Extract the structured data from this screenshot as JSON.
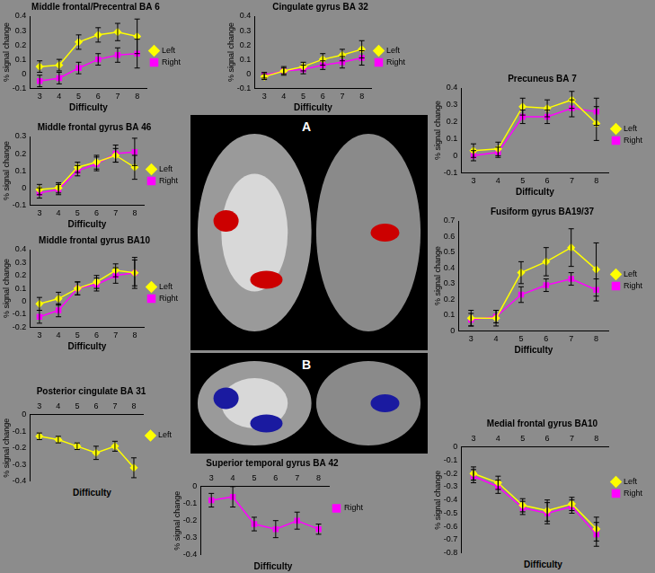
{
  "chart_data": [
    {
      "type": "line",
      "title": "Middle frontal/Precentral BA 6",
      "xlabel": "Difficulty",
      "ylabel": "% signal change",
      "categories": [
        3,
        4,
        5,
        6,
        7,
        8
      ],
      "ylim": [
        -0.1,
        0.4
      ],
      "yticks": [
        -0.1,
        0,
        0.1,
        0.2,
        0.3,
        0.4
      ],
      "grid": false,
      "legend": "right",
      "series": [
        {
          "name": "Left",
          "color": "#ffff00",
          "marker": "diamond",
          "line_style": "solid",
          "values": [
            0.05,
            0.06,
            0.22,
            0.27,
            0.29,
            0.26
          ],
          "errors": [
            0.04,
            0.04,
            0.05,
            0.05,
            0.06,
            0.12
          ]
        },
        {
          "name": "Right",
          "color": "#ff00ff",
          "marker": "square",
          "line_style": "solid",
          "values": [
            -0.05,
            -0.03,
            0.04,
            0.1,
            0.13,
            0.14
          ],
          "errors": [
            0.04,
            0.04,
            0.04,
            0.04,
            0.05,
            0.1
          ]
        }
      ]
    },
    {
      "type": "line",
      "title": "Cingulate gyrus BA 32",
      "xlabel": "Difficulty",
      "ylabel": "% signal change",
      "categories": [
        3,
        4,
        5,
        6,
        7,
        8
      ],
      "ylim": [
        -0.1,
        0.4
      ],
      "yticks": [
        -0.1,
        0,
        0.1,
        0.2,
        0.3,
        0.4
      ],
      "grid": false,
      "legend": "right",
      "series": [
        {
          "name": "Left",
          "color": "#ffff00",
          "marker": "diamond",
          "line_style": "solid",
          "values": [
            -0.02,
            0.02,
            0.05,
            0.1,
            0.13,
            0.17
          ],
          "errors": [
            0.02,
            0.03,
            0.03,
            0.04,
            0.04,
            0.06
          ]
        },
        {
          "name": "Right",
          "color": "#ff00ff",
          "marker": "square",
          "line_style": "solid",
          "values": [
            -0.01,
            0.02,
            0.03,
            0.06,
            0.08,
            0.11
          ],
          "errors": [
            0.02,
            0.02,
            0.03,
            0.03,
            0.04,
            0.05
          ]
        }
      ]
    },
    {
      "type": "line",
      "title": "Precuneus BA 7",
      "xlabel": "Difficulty",
      "ylabel": "% signal change",
      "categories": [
        3,
        4,
        5,
        6,
        7,
        8
      ],
      "ylim": [
        -0.1,
        0.4
      ],
      "yticks": [
        -0.1,
        0,
        0.1,
        0.2,
        0.3,
        0.4
      ],
      "grid": false,
      "legend": "right",
      "series": [
        {
          "name": "Left",
          "color": "#ffff00",
          "marker": "diamond",
          "line_style": "solid",
          "values": [
            0.03,
            0.04,
            0.29,
            0.28,
            0.33,
            0.19
          ],
          "errors": [
            0.04,
            0.04,
            0.05,
            0.05,
            0.05,
            0.1
          ]
        },
        {
          "name": "Right",
          "color": "#ff00ff",
          "marker": "square",
          "line_style": "solid",
          "values": [
            0.0,
            0.02,
            0.23,
            0.23,
            0.28,
            0.26
          ],
          "errors": [
            0.03,
            0.03,
            0.04,
            0.04,
            0.05,
            0.08
          ]
        }
      ]
    },
    {
      "type": "line",
      "title": "Middle frontal gyrus BA 46",
      "xlabel": "Difficulty",
      "ylabel": "% signal change",
      "categories": [
        3,
        4,
        5,
        6,
        7,
        8
      ],
      "ylim": [
        -0.1,
        0.3
      ],
      "yticks": [
        -0.1,
        0,
        0.1,
        0.2,
        0.3
      ],
      "grid": false,
      "legend": "right",
      "series": [
        {
          "name": "Left",
          "color": "#ffff00",
          "marker": "diamond",
          "line_style": "solid",
          "values": [
            -0.01,
            0.0,
            0.12,
            0.15,
            0.19,
            0.12
          ],
          "errors": [
            0.03,
            0.03,
            0.03,
            0.04,
            0.04,
            0.07
          ]
        },
        {
          "name": "Right",
          "color": "#ff00ff",
          "marker": "square",
          "line_style": "solid",
          "values": [
            -0.03,
            -0.01,
            0.1,
            0.14,
            0.2,
            0.21
          ],
          "errors": [
            0.03,
            0.03,
            0.03,
            0.04,
            0.05,
            0.08
          ]
        }
      ]
    },
    {
      "type": "line",
      "title": "Middle frontal gyrus BA10",
      "xlabel": "Difficulty",
      "ylabel": "% signal change",
      "categories": [
        3,
        4,
        5,
        6,
        7,
        8
      ],
      "ylim": [
        -0.2,
        0.4
      ],
      "yticks": [
        -0.2,
        -0.1,
        0,
        0.1,
        0.2,
        0.3,
        0.4
      ],
      "grid": false,
      "legend": "right",
      "series": [
        {
          "name": "Left",
          "color": "#ffff00",
          "marker": "diamond",
          "line_style": "solid",
          "values": [
            -0.02,
            0.02,
            0.1,
            0.15,
            0.24,
            0.22
          ],
          "errors": [
            0.05,
            0.05,
            0.05,
            0.05,
            0.05,
            0.1
          ]
        },
        {
          "name": "Right",
          "color": "#ff00ff",
          "marker": "square",
          "line_style": "solid",
          "values": [
            -0.12,
            -0.07,
            0.1,
            0.13,
            0.2,
            0.22
          ],
          "errors": [
            0.05,
            0.05,
            0.05,
            0.05,
            0.06,
            0.12
          ]
        }
      ]
    },
    {
      "type": "line",
      "title": "Fusiform gyrus BA19/37",
      "xlabel": "Difficulty",
      "ylabel": "% signal change",
      "categories": [
        3,
        4,
        5,
        6,
        7,
        8
      ],
      "ylim": [
        0,
        0.7
      ],
      "yticks": [
        0,
        0.1,
        0.2,
        0.3,
        0.4,
        0.5,
        0.6,
        0.7
      ],
      "grid": false,
      "legend": "right",
      "series": [
        {
          "name": "Left",
          "color": "#ffff00",
          "marker": "diamond",
          "line_style": "solid",
          "values": [
            0.08,
            0.08,
            0.37,
            0.44,
            0.53,
            0.39
          ],
          "errors": [
            0.05,
            0.05,
            0.07,
            0.09,
            0.12,
            0.17
          ]
        },
        {
          "name": "Right",
          "color": "#ff00ff",
          "marker": "square",
          "line_style": "solid",
          "values": [
            0.07,
            0.09,
            0.23,
            0.29,
            0.33,
            0.26
          ],
          "errors": [
            0.04,
            0.04,
            0.05,
            0.04,
            0.04,
            0.07
          ]
        }
      ]
    },
    {
      "type": "line",
      "title": "Posterior cingulate BA 31",
      "xlabel": "Difficulty",
      "ylabel": "% signal change",
      "categories": [
        3,
        4,
        5,
        6,
        7,
        8
      ],
      "ylim": [
        -0.4,
        0
      ],
      "yticks": [
        -0.4,
        -0.3,
        -0.2,
        -0.1,
        0
      ],
      "grid": false,
      "legend": "right",
      "series": [
        {
          "name": "Left",
          "color": "#ffff00",
          "marker": "diamond",
          "line_style": "solid",
          "values": [
            -0.13,
            -0.15,
            -0.19,
            -0.23,
            -0.19,
            -0.32
          ],
          "errors": [
            0.02,
            0.02,
            0.02,
            0.04,
            0.03,
            0.06
          ]
        }
      ]
    },
    {
      "type": "line",
      "title": "Superior temporal gyrus BA 42",
      "xlabel": "Difficulty",
      "ylabel": "% signal change",
      "categories": [
        3,
        4,
        5,
        6,
        7,
        8
      ],
      "ylim": [
        -0.4,
        0
      ],
      "yticks": [
        -0.4,
        -0.3,
        -0.2,
        -0.1,
        0
      ],
      "grid": false,
      "legend": "right",
      "series": [
        {
          "name": "Right",
          "color": "#ff00ff",
          "marker": "square",
          "line_style": "solid",
          "values": [
            -0.08,
            -0.06,
            -0.22,
            -0.25,
            -0.2,
            -0.25
          ],
          "errors": [
            0.04,
            0.06,
            0.04,
            0.05,
            0.05,
            0.03
          ]
        }
      ]
    },
    {
      "type": "line",
      "title": "Medial frontal gyrus BA10",
      "xlabel": "Difficulty",
      "ylabel": "% signal change",
      "categories": [
        3,
        4,
        5,
        6,
        7,
        8
      ],
      "ylim": [
        -0.8,
        0
      ],
      "yticks": [
        -0.8,
        -0.7,
        -0.6,
        -0.5,
        -0.4,
        -0.3,
        -0.2,
        -0.1,
        0
      ],
      "grid": false,
      "legend": "right",
      "series": [
        {
          "name": "Left",
          "color": "#ffff00",
          "marker": "diamond",
          "line_style": "solid",
          "values": [
            -0.2,
            -0.27,
            -0.44,
            -0.48,
            -0.43,
            -0.62
          ],
          "errors": [
            0.05,
            0.05,
            0.05,
            0.08,
            0.05,
            0.09
          ]
        },
        {
          "name": "Right",
          "color": "#ff00ff",
          "marker": "square",
          "line_style": "solid",
          "values": [
            -0.22,
            -0.3,
            -0.46,
            -0.5,
            -0.45,
            -0.66
          ],
          "errors": [
            0.05,
            0.05,
            0.05,
            0.08,
            0.05,
            0.09
          ]
        }
      ]
    }
  ],
  "panel_labels": [
    "A",
    "B"
  ]
}
